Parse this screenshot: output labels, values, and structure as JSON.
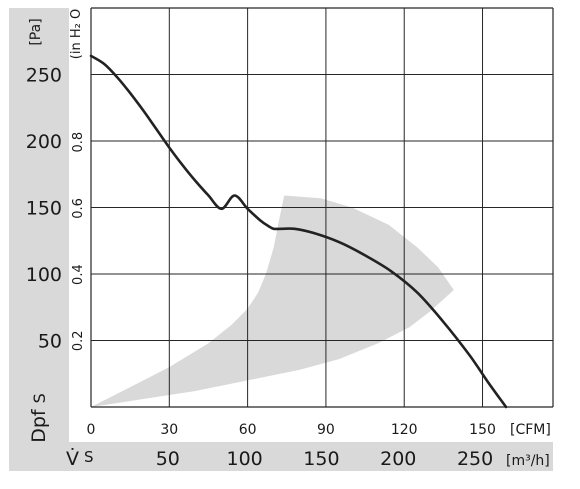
{
  "chart_data": {
    "type": "line",
    "axes": {
      "left_unit": "[Pa]",
      "left_ticks": [
        50,
        100,
        150,
        200,
        250
      ],
      "left_range": [
        0,
        300
      ],
      "inner_unit": "(in H₂ O",
      "inner_ticks": [
        "0.2",
        "0.4",
        "0.6",
        "0.8"
      ],
      "inner_values": [
        0.2,
        0.4,
        0.6,
        0.8
      ],
      "left_title_main": "Dpf",
      "left_title_sub": "S",
      "x_top_unit": "[CFM]",
      "x_top_ticks": [
        0,
        30,
        60,
        90,
        120,
        150
      ],
      "x_top_range": [
        0,
        177
      ],
      "x_bottom_unit": "[m³/h]",
      "x_bottom_ticks": [
        50,
        100,
        150,
        200,
        250
      ],
      "x_bottom_title_main": "V̇",
      "x_bottom_title_sub": "S"
    },
    "grid": true,
    "series": [
      {
        "points": [
          [
            0,
            264
          ],
          [
            5,
            258
          ],
          [
            10,
            248
          ],
          [
            15,
            236
          ],
          [
            20,
            223
          ],
          [
            25,
            209
          ],
          [
            30,
            195
          ],
          [
            35,
            182
          ],
          [
            40,
            170
          ],
          [
            45,
            159
          ],
          [
            50,
            149
          ],
          [
            55,
            159
          ],
          [
            60,
            149
          ],
          [
            65,
            140
          ],
          [
            68,
            136
          ],
          [
            70,
            134
          ],
          [
            73,
            134
          ],
          [
            78,
            134
          ],
          [
            85,
            131
          ],
          [
            95,
            124
          ],
          [
            105,
            114
          ],
          [
            115,
            102
          ],
          [
            125,
            86
          ],
          [
            135,
            64
          ],
          [
            145,
            39
          ],
          [
            152,
            19
          ],
          [
            159,
            0
          ]
        ]
      }
    ],
    "operating_region": {
      "color": "#d9d9d9",
      "boundary": [
        [
          0,
          0
        ],
        [
          20,
          6
        ],
        [
          40,
          12
        ],
        [
          60,
          20
        ],
        [
          80,
          28
        ],
        [
          95,
          36
        ],
        [
          110,
          48
        ],
        [
          122,
          60
        ],
        [
          130,
          72
        ],
        [
          139,
          88
        ],
        [
          133,
          105
        ],
        [
          125,
          120
        ],
        [
          114,
          137
        ],
        [
          100,
          150
        ],
        [
          88,
          157
        ],
        [
          74,
          159
        ],
        [
          72,
          140
        ],
        [
          70,
          120
        ],
        [
          67,
          100
        ],
        [
          64,
          86
        ],
        [
          60,
          74
        ],
        [
          54,
          62
        ],
        [
          45,
          48
        ],
        [
          30,
          30
        ],
        [
          15,
          15
        ]
      ]
    },
    "colors": {
      "curve": "#222222",
      "band": "#d9d9d9",
      "grid": "#262626"
    }
  }
}
